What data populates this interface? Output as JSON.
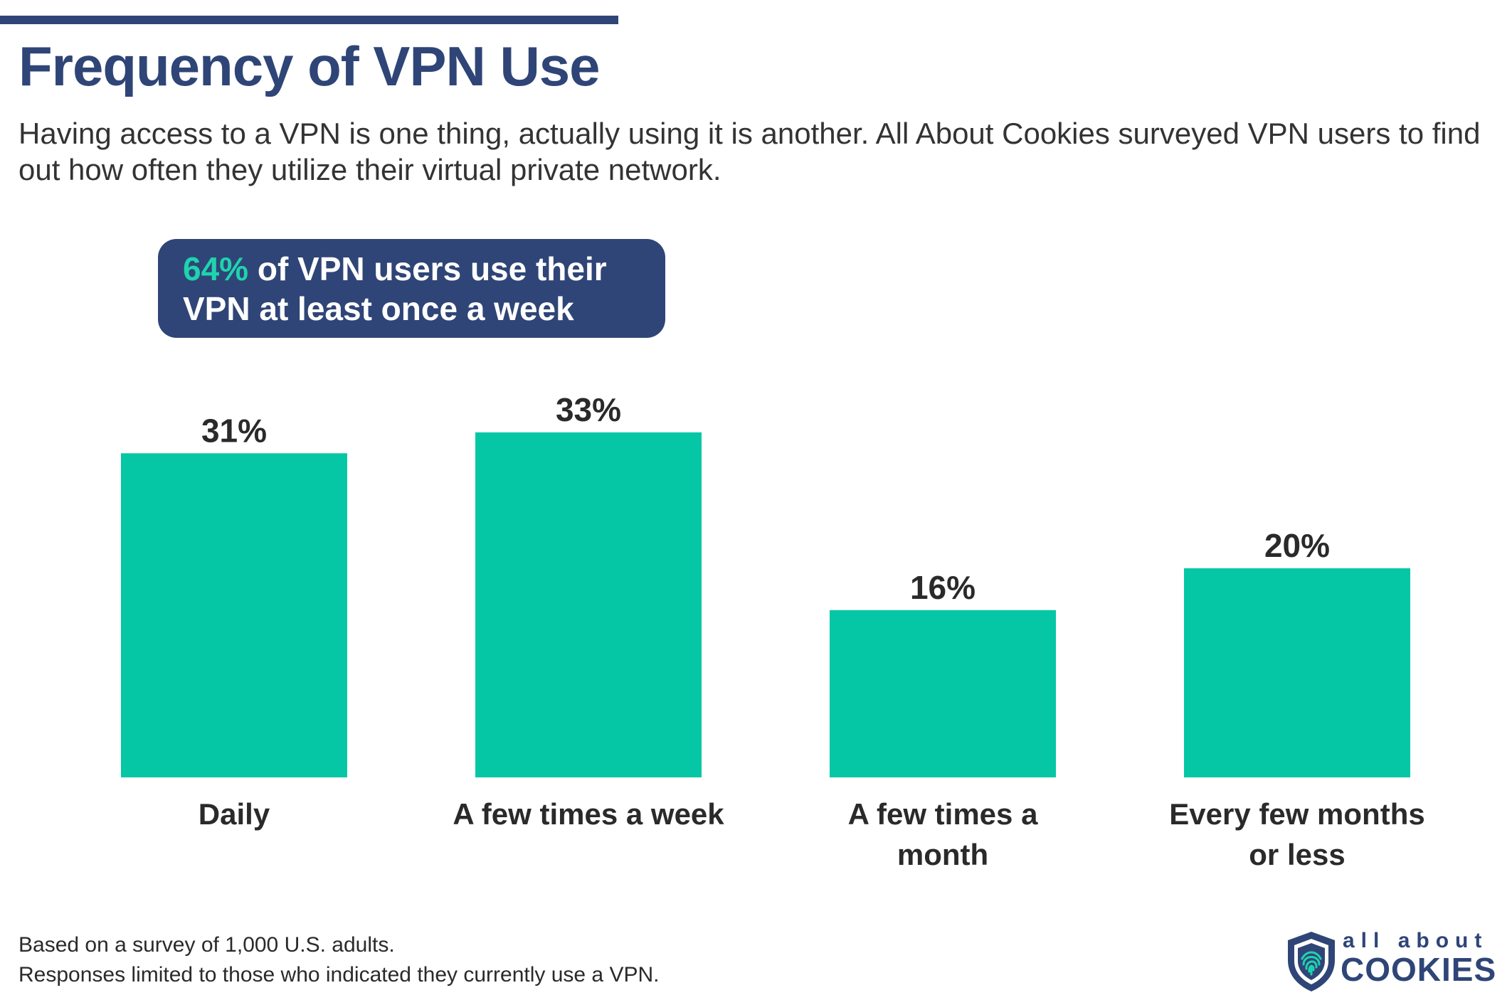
{
  "header": {
    "title": "Frequency of VPN Use",
    "subtitle": "Having access to a VPN is one thing, actually using it is another. All About Cookies surveyed VPN users to find out how often they utilize their virtual private network."
  },
  "callout": {
    "highlight": "64%",
    "text_line1": " of VPN users use their",
    "text_line2": "VPN at least once a week"
  },
  "chart_data": {
    "type": "bar",
    "categories": [
      "Daily",
      "A few times a week",
      "A few times a month",
      "Every few months or less"
    ],
    "category_lines": [
      [
        "Daily"
      ],
      [
        "A few times a week"
      ],
      [
        "A few times a",
        "month"
      ],
      [
        "Every few months",
        "or less"
      ]
    ],
    "values": [
      31,
      33,
      16,
      20
    ],
    "data_labels": [
      "31%",
      "33%",
      "16%",
      "20%"
    ],
    "unit": "%",
    "ylim": [
      0,
      40
    ],
    "grid": false,
    "legend": "none",
    "bar_color": "#06c7a5"
  },
  "footer": {
    "note_line1": "Based on a survey of 1,000 U.S. adults.",
    "note_line2": "Responses limited to those who indicated they currently use a VPN."
  },
  "logo": {
    "top": "all about",
    "main": "COOKIES",
    "icon": "shield-fingerprint-icon"
  },
  "colors": {
    "brand_navy": "#2f4577",
    "accent_teal": "#1fd3ae"
  }
}
